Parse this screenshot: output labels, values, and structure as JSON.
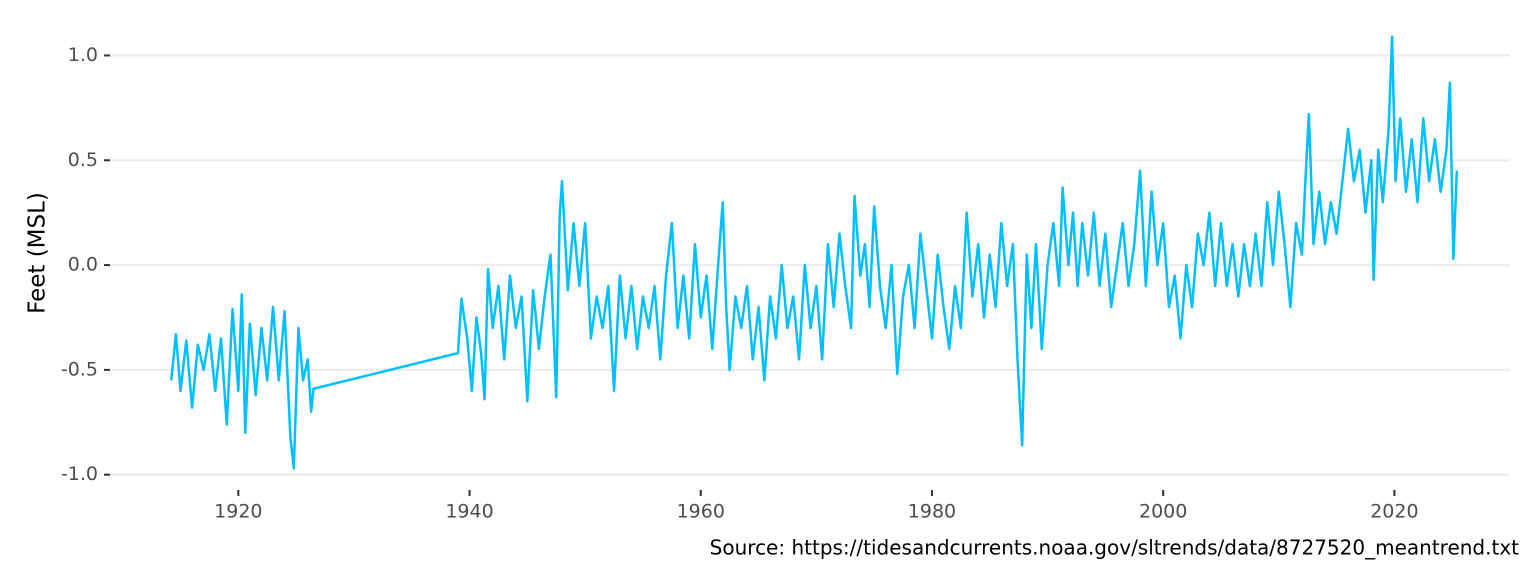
{
  "chart_data": {
    "type": "line",
    "y_label": "Feet (MSL)",
    "caption": "Source: https://tidesandcurrents.noaa.gov/sltrends/data/8727520_meantrend.txt",
    "color": "#00bfff",
    "grid": true,
    "xlim": [
      1908.9,
      2030.0
    ],
    "ylim": [
      -1.073,
      1.193
    ],
    "xticks": [
      1920,
      1940,
      1960,
      1980,
      2000,
      2020
    ],
    "yticks": [
      {
        "value": 1,
        "label": "1.0"
      },
      0.5,
      {
        "value": 0,
        "label": "0.0"
      },
      -0.5,
      {
        "value": -1,
        "label": "-1.0"
      }
    ],
    "x": [
      1914.2,
      1914.6,
      1915.0,
      1915.5,
      1916.0,
      1916.5,
      1917.0,
      1917.5,
      1918.0,
      1918.5,
      1919.0,
      1919.5,
      1920.0,
      1920.3,
      1920.6,
      1921.0,
      1921.5,
      1922.0,
      1922.5,
      1923.0,
      1923.5,
      1924.0,
      1924.5,
      1924.8,
      1925.2,
      1925.6,
      1926.0,
      1926.3,
      1926.5,
      1939.0,
      1939.3,
      1939.8,
      1940.2,
      1940.6,
      1941.0,
      1941.3,
      1941.6,
      1942.0,
      1942.5,
      1943.0,
      1943.5,
      1944.0,
      1944.5,
      1945.0,
      1945.5,
      1946.0,
      1946.5,
      1947.0,
      1947.5,
      1947.8,
      1948.0,
      1948.5,
      1949.0,
      1949.5,
      1950.0,
      1950.5,
      1951.0,
      1951.5,
      1952.0,
      1952.5,
      1953.0,
      1953.5,
      1954.0,
      1954.5,
      1955.0,
      1955.5,
      1956.0,
      1956.5,
      1957.0,
      1957.5,
      1958.0,
      1958.5,
      1959.0,
      1959.5,
      1960.0,
      1960.5,
      1961.0,
      1961.5,
      1961.9,
      1962.2,
      1962.5,
      1963.0,
      1963.5,
      1964.0,
      1964.5,
      1965.0,
      1965.5,
      1966.0,
      1966.5,
      1967.0,
      1967.5,
      1968.0,
      1968.5,
      1969.0,
      1969.5,
      1970.0,
      1970.5,
      1971.0,
      1971.5,
      1972.0,
      1972.5,
      1973.0,
      1973.3,
      1973.8,
      1974.2,
      1974.6,
      1975.0,
      1975.5,
      1976.0,
      1976.5,
      1977.0,
      1977.5,
      1978.0,
      1978.5,
      1979.0,
      1979.5,
      1980.0,
      1980.5,
      1981.0,
      1981.5,
      1982.0,
      1982.5,
      1983.0,
      1983.5,
      1984.0,
      1984.5,
      1985.0,
      1985.5,
      1986.0,
      1986.5,
      1987.0,
      1987.4,
      1987.8,
      1988.2,
      1988.6,
      1989.0,
      1989.5,
      1990.0,
      1990.5,
      1991.0,
      1991.3,
      1991.8,
      1992.2,
      1992.6,
      1993.0,
      1993.5,
      1994.0,
      1994.5,
      1995.0,
      1995.5,
      1996.0,
      1996.5,
      1997.0,
      1997.5,
      1998.0,
      1998.5,
      1999.0,
      1999.5,
      2000.0,
      2000.5,
      2001.0,
      2001.5,
      2002.0,
      2002.5,
      2003.0,
      2003.5,
      2004.0,
      2004.5,
      2005.0,
      2005.5,
      2006.0,
      2006.5,
      2007.0,
      2007.5,
      2008.0,
      2008.5,
      2009.0,
      2009.5,
      2010.0,
      2010.5,
      2011.0,
      2011.5,
      2012.0,
      2012.3,
      2012.6,
      2013.0,
      2013.5,
      2014.0,
      2014.5,
      2015.0,
      2015.5,
      2016.0,
      2016.5,
      2017.0,
      2017.5,
      2018.0,
      2018.2,
      2018.6,
      2019.0,
      2019.5,
      2019.8,
      2020.1,
      2020.5,
      2021.0,
      2021.5,
      2022.0,
      2022.5,
      2023.0,
      2023.5,
      2024.0,
      2024.5,
      2024.8,
      2025.1,
      2025.4
    ],
    "values": [
      -0.55,
      -0.33,
      -0.6,
      -0.36,
      -0.68,
      -0.38,
      -0.5,
      -0.33,
      -0.6,
      -0.35,
      -0.76,
      -0.21,
      -0.6,
      -0.14,
      -0.8,
      -0.28,
      -0.62,
      -0.3,
      -0.55,
      -0.2,
      -0.55,
      -0.22,
      -0.82,
      -0.97,
      -0.3,
      -0.55,
      -0.45,
      -0.7,
      -0.59,
      -0.42,
      -0.16,
      -0.35,
      -0.6,
      -0.25,
      -0.42,
      -0.64,
      -0.02,
      -0.3,
      -0.1,
      -0.45,
      -0.05,
      -0.3,
      -0.15,
      -0.65,
      -0.12,
      -0.4,
      -0.15,
      0.05,
      -0.63,
      0.24,
      0.4,
      -0.12,
      0.2,
      -0.1,
      0.2,
      -0.35,
      -0.15,
      -0.3,
      -0.1,
      -0.6,
      -0.05,
      -0.35,
      -0.1,
      -0.4,
      -0.15,
      -0.3,
      -0.1,
      -0.45,
      -0.05,
      0.2,
      -0.3,
      -0.05,
      -0.35,
      0.1,
      -0.25,
      -0.05,
      -0.4,
      0.0,
      0.3,
      -0.2,
      -0.5,
      -0.15,
      -0.3,
      -0.1,
      -0.45,
      -0.2,
      -0.55,
      -0.15,
      -0.35,
      0.0,
      -0.3,
      -0.15,
      -0.45,
      0.0,
      -0.3,
      -0.1,
      -0.45,
      0.1,
      -0.2,
      0.15,
      -0.1,
      -0.3,
      0.33,
      -0.05,
      0.1,
      -0.2,
      0.28,
      -0.1,
      -0.3,
      0.0,
      -0.52,
      -0.15,
      0.0,
      -0.3,
      0.15,
      -0.1,
      -0.35,
      0.05,
      -0.2,
      -0.4,
      -0.1,
      -0.3,
      0.25,
      -0.15,
      0.1,
      -0.25,
      0.05,
      -0.2,
      0.2,
      -0.1,
      0.1,
      -0.45,
      -0.86,
      0.05,
      -0.3,
      0.1,
      -0.4,
      0.0,
      0.2,
      -0.1,
      0.37,
      0.0,
      0.25,
      -0.1,
      0.2,
      -0.05,
      0.25,
      -0.1,
      0.15,
      -0.2,
      0.0,
      0.2,
      -0.1,
      0.1,
      0.45,
      -0.1,
      0.35,
      0.0,
      0.2,
      -0.2,
      -0.05,
      -0.35,
      0.0,
      -0.2,
      0.15,
      0.0,
      0.25,
      -0.1,
      0.2,
      -0.1,
      0.1,
      -0.15,
      0.1,
      -0.1,
      0.15,
      -0.1,
      0.3,
      0.0,
      0.35,
      0.1,
      -0.2,
      0.2,
      0.05,
      0.4,
      0.72,
      0.1,
      0.35,
      0.1,
      0.3,
      0.15,
      0.4,
      0.65,
      0.4,
      0.55,
      0.25,
      0.5,
      -0.07,
      0.55,
      0.3,
      0.65,
      1.09,
      0.4,
      0.7,
      0.35,
      0.6,
      0.3,
      0.7,
      0.4,
      0.6,
      0.35,
      0.55,
      0.87,
      0.03,
      0.45
    ]
  }
}
